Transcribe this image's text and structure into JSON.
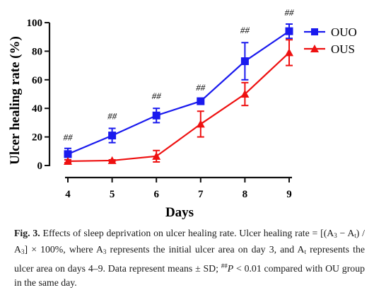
{
  "chart_data": {
    "type": "line",
    "xlabel": "Days",
    "ylabel": "Ulcer healing rate (%)",
    "x": [
      4,
      5,
      6,
      7,
      8,
      9
    ],
    "xlim": [
      4,
      9
    ],
    "ylim": [
      0,
      100
    ],
    "yticks": [
      0,
      20,
      40,
      60,
      80,
      100
    ],
    "legend_position": "top-right",
    "series": [
      {
        "name": "OUO",
        "color": "#1a1aee",
        "marker": "square",
        "values": [
          8,
          21,
          35,
          45,
          73,
          94
        ],
        "errors": [
          4,
          5,
          5,
          2,
          13,
          5
        ]
      },
      {
        "name": "OUS",
        "color": "#ee1111",
        "marker": "triangle",
        "values": [
          3,
          3.5,
          6.5,
          29,
          50,
          79
        ],
        "errors": [
          1,
          0.5,
          4,
          9,
          8,
          9
        ]
      }
    ],
    "annotations": [
      {
        "x": 4,
        "text": "##",
        "y": 17.5
      },
      {
        "x": 5,
        "text": "##",
        "y": 32.5
      },
      {
        "x": 6,
        "text": "##",
        "y": 46.5
      },
      {
        "x": 7,
        "text": "##",
        "y": 52.5
      },
      {
        "x": 8,
        "text": "##",
        "y": 92.5
      },
      {
        "x": 9,
        "text": "##",
        "y": 105
      }
    ]
  },
  "caption": {
    "fig_label": "Fig. 3.",
    "line1_rest": "Effects of sleep deprivation on ulcer healing rate. Ulcer healing",
    "line2": "rate = [(A",
    "line2_sub1": "3",
    "line2_mid1": " − A",
    "line2_sub2": "t",
    "line2_mid2": ") / A",
    "line2_sub3": "3",
    "line2_mid3": "] × 100%, where A",
    "line2_sub4": "3",
    "line2_end": " represents the initial ulcer area on",
    "line3_start": "day 3, and A",
    "line3_sub": "t",
    "line3_end": " represents the ulcer area on days 4–9. Data represent means ± SD;",
    "line4_sup": "##",
    "line4_p": "P",
    "line4_end": " < 0.01 compared with OU group in the same day."
  }
}
